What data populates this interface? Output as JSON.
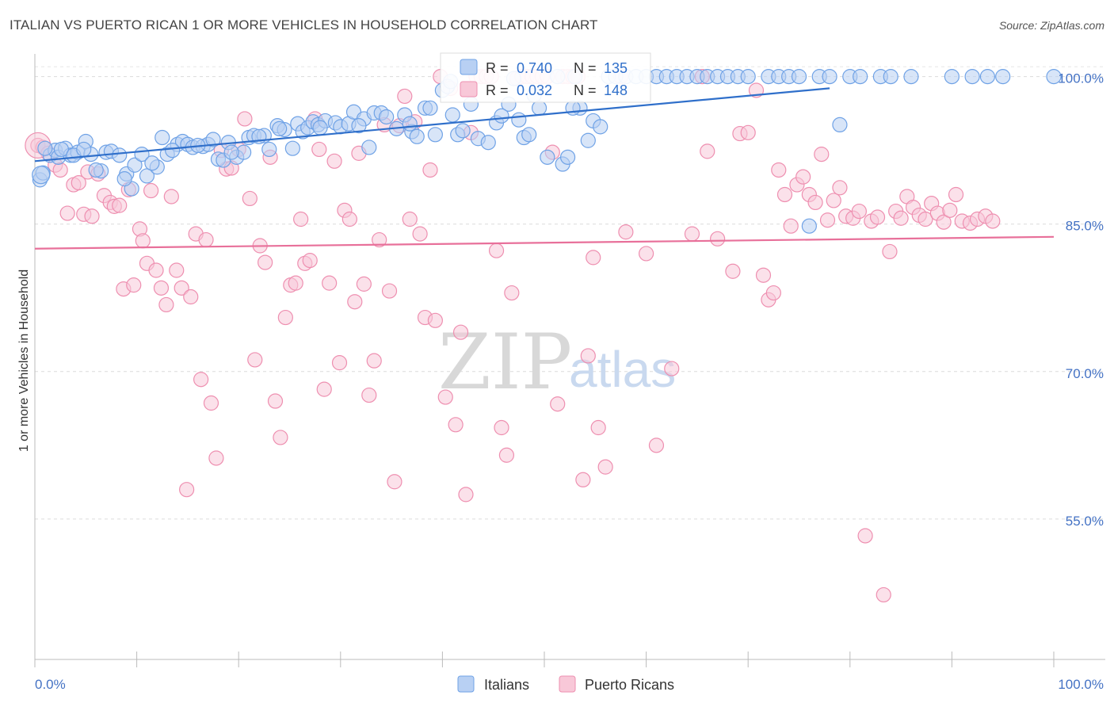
{
  "title": "ITALIAN VS PUERTO RICAN 1 OR MORE VEHICLES IN HOUSEHOLD CORRELATION CHART",
  "source": "Source: ZipAtlas.com",
  "colors": {
    "italians": "#6fa2e6",
    "italians_fill": "#b8d0f3",
    "italians_line": "#2f6fca",
    "puerto_ricans": "#ee8fb0",
    "puerto_ricans_fill": "#f8c8d8",
    "puerto_ricans_line": "#e8709a",
    "tick_text": "#4472c4"
  },
  "stats": [
    {
      "r_label": "R = ",
      "r_value": "0.740",
      "n_label": "N = ",
      "n_value": "135"
    },
    {
      "r_label": "R = ",
      "r_value": "0.032",
      "n_label": "N = ",
      "n_value": "148"
    }
  ],
  "legend": {
    "items": [
      "Italians",
      "Puerto Ricans"
    ],
    "placement": "bottom-center"
  },
  "watermark": {
    "zip": "ZIP",
    "atlas": "atlas"
  },
  "chart_data": {
    "type": "scatter",
    "ylabel": "1 or more Vehicles in Household",
    "xlabel": "",
    "xlim": [
      0,
      100
    ],
    "ylim": [
      40,
      101.5
    ],
    "x_tick_labels": [
      "0.0%",
      "100.0%"
    ],
    "y_ticks": [
      55,
      70,
      85,
      100
    ],
    "y_tick_labels": [
      "55.0%",
      "70.0%",
      "85.0%",
      "100.0%"
    ],
    "grid": "horizontal dashed",
    "series": [
      {
        "name": "Italians",
        "trend": [
          [
            0,
            91.4
          ],
          [
            100,
            100.9
          ]
        ],
        "points": [
          [
            0.5,
            89.5
          ],
          [
            0.8,
            90.2
          ],
          [
            1.5,
            92.0
          ],
          [
            2.0,
            92.5
          ],
          [
            2.3,
            91.8
          ],
          [
            3.0,
            92.7
          ],
          [
            3.5,
            92.0
          ],
          [
            4.2,
            92.3
          ],
          [
            5.0,
            93.4
          ],
          [
            5.5,
            92.1
          ],
          [
            6.5,
            90.4
          ],
          [
            7.0,
            92.3
          ],
          [
            7.5,
            92.4
          ],
          [
            8.3,
            92.0
          ],
          [
            9.0,
            90.1
          ],
          [
            9.5,
            88.6
          ],
          [
            9.8,
            91.0
          ],
          [
            10.5,
            92.1
          ],
          [
            11.0,
            89.9
          ],
          [
            12.0,
            90.8
          ],
          [
            12.5,
            93.8
          ],
          [
            13.0,
            92.1
          ],
          [
            14.0,
            93.1
          ],
          [
            14.5,
            93.4
          ],
          [
            15.0,
            93.1
          ],
          [
            15.5,
            92.8
          ],
          [
            16.5,
            92.9
          ],
          [
            17.0,
            93.1
          ],
          [
            17.5,
            93.6
          ],
          [
            18.0,
            91.6
          ],
          [
            18.5,
            91.5
          ],
          [
            19.0,
            93.3
          ],
          [
            19.8,
            91.8
          ],
          [
            20.5,
            92.3
          ],
          [
            21.0,
            93.8
          ],
          [
            21.5,
            94.0
          ],
          [
            22.5,
            94.0
          ],
          [
            23.0,
            92.6
          ],
          [
            23.8,
            95.0
          ],
          [
            24.5,
            94.6
          ],
          [
            25.3,
            92.7
          ],
          [
            25.8,
            95.2
          ],
          [
            26.3,
            94.4
          ],
          [
            26.8,
            94.8
          ],
          [
            27.3,
            95.4
          ],
          [
            27.8,
            95.1
          ],
          [
            28.5,
            95.5
          ],
          [
            29.5,
            95.3
          ],
          [
            30.0,
            94.9
          ],
          [
            30.8,
            95.2
          ],
          [
            31.3,
            96.4
          ],
          [
            32.3,
            95.7
          ],
          [
            32.8,
            92.8
          ],
          [
            33.3,
            96.3
          ],
          [
            34.0,
            96.3
          ],
          [
            34.5,
            95.9
          ],
          [
            35.5,
            94.7
          ],
          [
            36.3,
            96.1
          ],
          [
            37.0,
            94.4
          ],
          [
            37.5,
            93.9
          ],
          [
            38.3,
            96.8
          ],
          [
            38.8,
            96.8
          ],
          [
            39.3,
            94.1
          ],
          [
            40.0,
            98.6
          ],
          [
            40.5,
            99.0
          ],
          [
            40.8,
            99.5
          ],
          [
            41.5,
            94.1
          ],
          [
            42.0,
            94.5
          ],
          [
            42.8,
            97.2
          ],
          [
            43.5,
            93.7
          ],
          [
            44.5,
            93.3
          ],
          [
            45.3,
            95.3
          ],
          [
            46.5,
            97.2
          ],
          [
            47.0,
            99.8
          ],
          [
            47.5,
            95.6
          ],
          [
            48.0,
            93.8
          ],
          [
            49.0,
            98.1
          ],
          [
            49.5,
            96.8
          ],
          [
            50.3,
            91.8
          ],
          [
            51.3,
            100.0
          ],
          [
            51.8,
            91.1
          ],
          [
            52.3,
            91.8
          ],
          [
            53.0,
            100.0
          ],
          [
            53.5,
            96.8
          ],
          [
            54.3,
            93.5
          ],
          [
            54.8,
            95.5
          ],
          [
            55.5,
            94.9
          ],
          [
            56.3,
            100.0
          ],
          [
            57.0,
            100.0
          ],
          [
            58.0,
            100.0
          ],
          [
            59.0,
            100.0
          ],
          [
            60.0,
            100.0
          ],
          [
            61.0,
            100.0
          ],
          [
            62.0,
            100.0
          ],
          [
            63.0,
            100.0
          ],
          [
            64.0,
            100.0
          ],
          [
            65.0,
            100.0
          ],
          [
            66.0,
            100.0
          ],
          [
            67.0,
            100.0
          ],
          [
            68.0,
            100.0
          ],
          [
            69.0,
            100.0
          ],
          [
            70.0,
            100.0
          ],
          [
            72.0,
            100.0
          ],
          [
            73.0,
            100.0
          ],
          [
            74.0,
            100.0
          ],
          [
            75.0,
            100.0
          ],
          [
            76.0,
            84.8
          ],
          [
            77.0,
            100.0
          ],
          [
            78.0,
            100.0
          ],
          [
            79.0,
            95.1
          ],
          [
            80.0,
            100.0
          ],
          [
            81.0,
            100.0
          ],
          [
            83.0,
            100.0
          ],
          [
            84.0,
            100.0
          ],
          [
            86.0,
            100.0
          ],
          [
            90.0,
            100.0
          ],
          [
            92.0,
            100.0
          ],
          [
            93.5,
            100.0
          ],
          [
            95.0,
            100.0
          ],
          [
            100.0,
            100.0
          ],
          [
            1.0,
            92.7
          ],
          [
            2.6,
            92.6
          ],
          [
            3.8,
            92.0
          ],
          [
            4.8,
            92.6
          ],
          [
            6.0,
            90.5
          ],
          [
            8.8,
            89.6
          ],
          [
            11.5,
            91.2
          ],
          [
            13.5,
            92.5
          ],
          [
            16.0,
            93.0
          ],
          [
            19.3,
            92.3
          ],
          [
            22.0,
            93.9
          ],
          [
            24.0,
            94.7
          ],
          [
            28.0,
            94.8
          ],
          [
            31.8,
            95.0
          ],
          [
            36.8,
            95.2
          ],
          [
            41.0,
            96.1
          ],
          [
            45.8,
            96.0
          ],
          [
            48.5,
            94.1
          ],
          [
            52.8,
            96.8
          ]
        ]
      },
      {
        "name": "Puerto Ricans",
        "trend": [
          [
            0,
            82.5
          ],
          [
            100,
            83.7
          ]
        ],
        "points": [
          [
            0.3,
            93.0
          ],
          [
            0.8,
            92.8
          ],
          [
            1.3,
            92.2
          ],
          [
            2.0,
            91.0
          ],
          [
            2.5,
            90.5
          ],
          [
            3.2,
            86.1
          ],
          [
            3.8,
            89.0
          ],
          [
            4.3,
            89.2
          ],
          [
            4.8,
            86.0
          ],
          [
            5.2,
            90.3
          ],
          [
            5.6,
            85.8
          ],
          [
            6.2,
            90.1
          ],
          [
            6.8,
            87.9
          ],
          [
            7.4,
            87.2
          ],
          [
            7.8,
            86.8
          ],
          [
            8.3,
            86.9
          ],
          [
            8.7,
            78.4
          ],
          [
            9.2,
            88.5
          ],
          [
            9.7,
            78.8
          ],
          [
            10.3,
            84.5
          ],
          [
            10.6,
            83.3
          ],
          [
            11.0,
            81.0
          ],
          [
            11.4,
            88.4
          ],
          [
            11.9,
            80.3
          ],
          [
            12.4,
            78.5
          ],
          [
            12.9,
            76.8
          ],
          [
            13.4,
            87.8
          ],
          [
            13.9,
            80.3
          ],
          [
            14.4,
            78.5
          ],
          [
            14.9,
            58.0
          ],
          [
            15.3,
            77.6
          ],
          [
            15.8,
            84.0
          ],
          [
            16.3,
            69.2
          ],
          [
            16.8,
            83.4
          ],
          [
            17.3,
            66.8
          ],
          [
            17.8,
            61.2
          ],
          [
            18.3,
            92.5
          ],
          [
            18.8,
            90.6
          ],
          [
            19.3,
            90.7
          ],
          [
            20.0,
            92.6
          ],
          [
            20.6,
            95.7
          ],
          [
            21.1,
            87.6
          ],
          [
            21.6,
            71.2
          ],
          [
            22.1,
            82.8
          ],
          [
            22.6,
            81.1
          ],
          [
            23.1,
            91.8
          ],
          [
            23.6,
            67.0
          ],
          [
            24.1,
            63.3
          ],
          [
            24.6,
            75.5
          ],
          [
            25.1,
            78.8
          ],
          [
            25.6,
            79.0
          ],
          [
            26.1,
            85.5
          ],
          [
            26.5,
            81.0
          ],
          [
            27.0,
            81.3
          ],
          [
            27.5,
            95.7
          ],
          [
            27.9,
            92.6
          ],
          [
            28.4,
            68.2
          ],
          [
            28.9,
            79.0
          ],
          [
            29.4,
            91.4
          ],
          [
            29.9,
            70.9
          ],
          [
            30.4,
            86.4
          ],
          [
            30.9,
            85.5
          ],
          [
            31.4,
            77.1
          ],
          [
            31.8,
            92.2
          ],
          [
            32.3,
            78.9
          ],
          [
            32.8,
            67.6
          ],
          [
            33.3,
            71.1
          ],
          [
            33.8,
            83.4
          ],
          [
            34.3,
            95.1
          ],
          [
            34.8,
            78.2
          ],
          [
            35.3,
            58.8
          ],
          [
            35.8,
            95.0
          ],
          [
            36.3,
            98.0
          ],
          [
            36.8,
            85.5
          ],
          [
            37.3,
            95.4
          ],
          [
            37.8,
            84.0
          ],
          [
            38.3,
            75.5
          ],
          [
            38.8,
            90.5
          ],
          [
            39.3,
            75.2
          ],
          [
            39.8,
            100.0
          ],
          [
            40.3,
            67.4
          ],
          [
            40.8,
            98.8
          ],
          [
            41.3,
            64.6
          ],
          [
            41.8,
            74.0
          ],
          [
            42.3,
            57.5
          ],
          [
            42.8,
            94.3
          ],
          [
            43.3,
            100.0
          ],
          [
            43.8,
            100.0
          ],
          [
            44.3,
            100.0
          ],
          [
            44.8,
            100.0
          ],
          [
            45.3,
            82.3
          ],
          [
            45.8,
            64.3
          ],
          [
            46.3,
            61.5
          ],
          [
            46.8,
            78.0
          ],
          [
            47.3,
            99.8
          ],
          [
            47.8,
            100.0
          ],
          [
            48.3,
            100.0
          ],
          [
            48.8,
            100.0
          ],
          [
            49.3,
            100.0
          ],
          [
            49.8,
            100.0
          ],
          [
            50.3,
            100.0
          ],
          [
            50.8,
            92.3
          ],
          [
            51.3,
            66.7
          ],
          [
            51.8,
            100.0
          ],
          [
            52.3,
            100.0
          ],
          [
            52.8,
            100.0
          ],
          [
            53.3,
            100.0
          ],
          [
            53.8,
            59.0
          ],
          [
            54.3,
            71.6
          ],
          [
            54.8,
            81.6
          ],
          [
            55.3,
            64.3
          ],
          [
            56.0,
            60.3
          ],
          [
            57.5,
            100.0
          ],
          [
            58.0,
            84.2
          ],
          [
            60.0,
            82.0
          ],
          [
            61.0,
            62.5
          ],
          [
            62.5,
            70.3
          ],
          [
            64.5,
            84.0
          ],
          [
            65.5,
            100.0
          ],
          [
            66.0,
            92.4
          ],
          [
            67.0,
            83.5
          ],
          [
            68.5,
            80.2
          ],
          [
            69.2,
            94.2
          ],
          [
            70.0,
            94.3
          ],
          [
            70.8,
            98.6
          ],
          [
            71.5,
            79.8
          ],
          [
            72.0,
            77.3
          ],
          [
            72.5,
            78.0
          ],
          [
            73.0,
            90.5
          ],
          [
            73.6,
            88.0
          ],
          [
            74.2,
            84.8
          ],
          [
            74.8,
            89.0
          ],
          [
            75.4,
            89.8
          ],
          [
            76.0,
            88.0
          ],
          [
            76.6,
            87.2
          ],
          [
            77.2,
            92.1
          ],
          [
            77.8,
            85.4
          ],
          [
            78.4,
            87.4
          ],
          [
            79.0,
            88.7
          ],
          [
            79.6,
            85.8
          ],
          [
            80.3,
            85.6
          ],
          [
            80.9,
            86.3
          ],
          [
            81.5,
            53.3
          ],
          [
            82.1,
            85.3
          ],
          [
            82.7,
            85.7
          ],
          [
            83.3,
            47.3
          ],
          [
            83.9,
            82.2
          ],
          [
            84.5,
            86.3
          ],
          [
            85.0,
            85.6
          ],
          [
            85.6,
            87.8
          ],
          [
            86.2,
            86.7
          ],
          [
            86.8,
            85.9
          ],
          [
            87.4,
            85.5
          ],
          [
            88.0,
            87.1
          ],
          [
            88.6,
            86.1
          ],
          [
            89.2,
            85.2
          ],
          [
            89.8,
            86.4
          ],
          [
            90.4,
            88.0
          ],
          [
            91.0,
            85.3
          ],
          [
            91.8,
            85.1
          ],
          [
            92.5,
            85.5
          ],
          [
            93.3,
            85.8
          ],
          [
            94.0,
            85.3
          ]
        ]
      }
    ]
  }
}
